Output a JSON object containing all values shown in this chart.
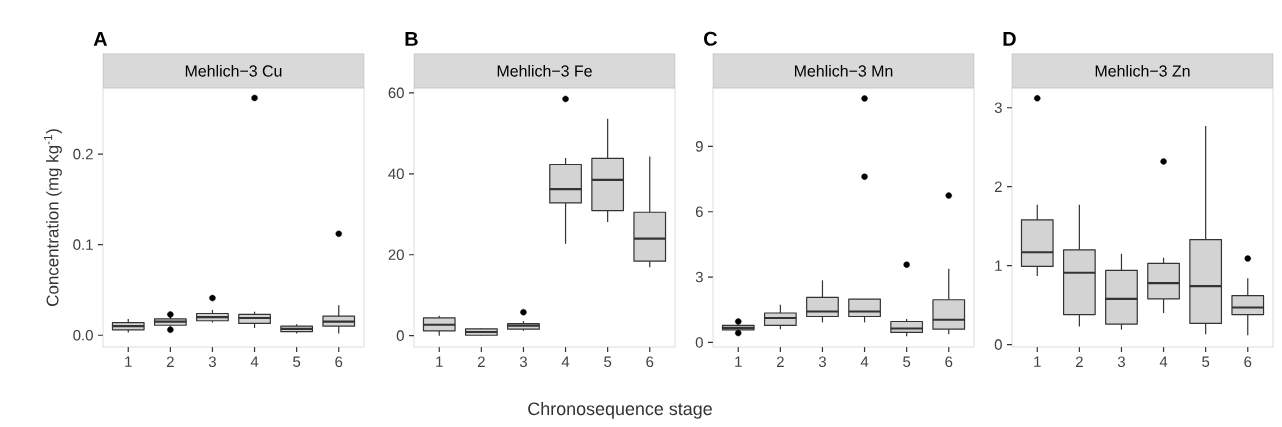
{
  "chart_data": [
    {
      "type": "box",
      "title": "A",
      "subtitle": "Mehlich−3 Cu",
      "ylabel": "Concentration (mg kg$^{-1}$)",
      "color": "#d3d3d3",
      "categories": [
        "1",
        "2",
        "3",
        "4",
        "5",
        "6"
      ],
      "ylim": [
        -0.013,
        0.273
      ],
      "yticks": [
        {
          "value": 0,
          "label": "0.0"
        },
        0.1,
        0.2
      ],
      "boxes": [
        {
          "low": 0.003,
          "q1": 0.006,
          "median": 0.01,
          "q3": 0.014,
          "high": 0.018
        },
        {
          "low": 0.009,
          "q1": 0.011,
          "median": 0.015,
          "q3": 0.018,
          "high": 0.02,
          "outliers": [
            0.023,
            0.006
          ]
        },
        {
          "low": 0.014,
          "q1": 0.016,
          "median": 0.02,
          "q3": 0.024,
          "high": 0.028,
          "outliers": [
            0.041
          ]
        },
        {
          "low": 0.008,
          "q1": 0.013,
          "median": 0.019,
          "q3": 0.023,
          "high": 0.026,
          "outliers": [
            0.262
          ]
        },
        {
          "low": 0.002,
          "q1": 0.004,
          "median": 0.007,
          "q3": 0.01,
          "high": 0.012
        },
        {
          "low": 0.002,
          "q1": 0.01,
          "median": 0.015,
          "q3": 0.021,
          "high": 0.033,
          "outliers": [
            0.112
          ]
        }
      ]
    },
    {
      "type": "box",
      "title": "B",
      "subtitle": "Mehlich−3 Fe",
      "xlabel": "Chronosequence stage",
      "color": "#d3d3d3",
      "categories": [
        "1",
        "2",
        "3",
        "4",
        "5",
        "6"
      ],
      "ylim": [
        -2.8,
        61.2
      ],
      "yticks": [
        0,
        20,
        40,
        60
      ],
      "boxes": [
        {
          "low": 0,
          "q1": 1.2,
          "median": 2.7,
          "q3": 4.4,
          "high": 4.9
        },
        {
          "low": 0,
          "q1": 0.1,
          "median": 0.9,
          "q3": 1.7,
          "high": 1.9
        },
        {
          "low": 1.2,
          "q1": 1.6,
          "median": 2.5,
          "q3": 3.0,
          "high": 3.6,
          "outliers": [
            5.8
          ]
        },
        {
          "low": 22.7,
          "q1": 32.8,
          "median": 36.2,
          "q3": 42.3,
          "high": 43.9,
          "outliers": [
            58.5
          ]
        },
        {
          "low": 28.1,
          "q1": 30.9,
          "median": 38.5,
          "q3": 43.8,
          "high": 53.6
        },
        {
          "low": 16.9,
          "q1": 18.4,
          "median": 24.0,
          "q3": 30.5,
          "high": 44.3
        }
      ]
    },
    {
      "type": "box",
      "title": "C",
      "subtitle": "Mehlich−3 Mn",
      "color": "#d3d3d3",
      "categories": [
        "1",
        "2",
        "3",
        "4",
        "5",
        "6"
      ],
      "ylim": [
        -0.21,
        11.68
      ],
      "yticks": [
        0,
        3,
        6,
        9
      ],
      "boxes": [
        {
          "low": 0.55,
          "q1": 0.58,
          "median": 0.67,
          "q3": 0.78,
          "high": 0.82,
          "outliers": [
            0.96,
            0.43
          ]
        },
        {
          "low": 0.61,
          "q1": 0.78,
          "median": 1.12,
          "q3": 1.35,
          "high": 1.73
        },
        {
          "low": 0.92,
          "q1": 1.19,
          "median": 1.42,
          "q3": 2.07,
          "high": 2.85
        },
        {
          "low": 0.92,
          "q1": 1.19,
          "median": 1.42,
          "q3": 1.99,
          "high": 1.99,
          "outliers": [
            11.2,
            7.61
          ]
        },
        {
          "low": 0.28,
          "q1": 0.46,
          "median": 0.64,
          "q3": 0.96,
          "high": 1.07,
          "outliers": [
            3.57
          ]
        },
        {
          "low": 0.37,
          "q1": 0.61,
          "median": 1.04,
          "q3": 1.96,
          "high": 3.38,
          "outliers": [
            6.74
          ]
        }
      ]
    },
    {
      "type": "box",
      "title": "D",
      "subtitle": "Mehlich−3 Zn",
      "color": "#d3d3d3",
      "categories": [
        "1",
        "2",
        "3",
        "4",
        "5",
        "6"
      ],
      "ylim": [
        -0.03,
        3.25
      ],
      "yticks": [
        0,
        1,
        2,
        3
      ],
      "boxes": [
        {
          "low": 0.87,
          "q1": 0.99,
          "median": 1.17,
          "q3": 1.58,
          "high": 1.77,
          "outliers": [
            3.12
          ]
        },
        {
          "low": 0.23,
          "q1": 0.38,
          "median": 0.91,
          "q3": 1.2,
          "high": 1.77
        },
        {
          "low": 0.19,
          "q1": 0.26,
          "median": 0.58,
          "q3": 0.94,
          "high": 1.15
        },
        {
          "low": 0.4,
          "q1": 0.58,
          "median": 0.78,
          "q3": 1.03,
          "high": 1.1,
          "outliers": [
            2.32
          ]
        },
        {
          "low": 0.13,
          "q1": 0.27,
          "median": 0.74,
          "q3": 1.33,
          "high": 2.77
        },
        {
          "low": 0.12,
          "q1": 0.38,
          "median": 0.47,
          "q3": 0.62,
          "high": 0.84,
          "outliers": [
            1.09
          ]
        }
      ]
    }
  ]
}
